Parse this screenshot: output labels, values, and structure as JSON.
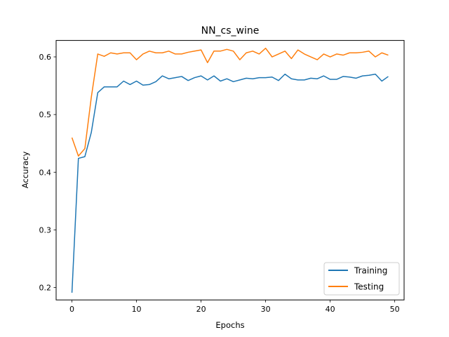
{
  "chart_data": {
    "type": "line",
    "title": "NN_cs_wine",
    "xlabel": "Epochs",
    "ylabel": "Accuracy",
    "xlim": [
      -2.45,
      51.45
    ],
    "ylim": [
      0.1785,
      0.6285
    ],
    "xticks": [
      0,
      10,
      20,
      30,
      40,
      50
    ],
    "yticks": [
      0.2,
      0.3,
      0.4,
      0.5,
      0.6
    ],
    "ytick_labels": [
      "0.2",
      "0.3",
      "0.4",
      "0.5",
      "0.6"
    ],
    "grid": false,
    "legend_position": "lower-right",
    "x": [
      0,
      1,
      2,
      3,
      4,
      5,
      6,
      7,
      8,
      9,
      10,
      11,
      12,
      13,
      14,
      15,
      16,
      17,
      18,
      19,
      20,
      21,
      22,
      23,
      24,
      25,
      26,
      27,
      28,
      29,
      30,
      31,
      32,
      33,
      34,
      35,
      36,
      37,
      38,
      39,
      40,
      41,
      42,
      43,
      44,
      45,
      46,
      47,
      48,
      49
    ],
    "series": [
      {
        "name": "Training",
        "color": "#1f77b4",
        "values": [
          0.191,
          0.424,
          0.427,
          0.469,
          0.538,
          0.548,
          0.548,
          0.548,
          0.558,
          0.552,
          0.558,
          0.551,
          0.552,
          0.557,
          0.567,
          0.562,
          0.564,
          0.566,
          0.559,
          0.564,
          0.567,
          0.56,
          0.567,
          0.558,
          0.562,
          0.557,
          0.56,
          0.563,
          0.562,
          0.564,
          0.564,
          0.565,
          0.559,
          0.57,
          0.562,
          0.56,
          0.56,
          0.563,
          0.562,
          0.567,
          0.561,
          0.561,
          0.566,
          0.565,
          0.563,
          0.567,
          0.568,
          0.57,
          0.558,
          0.566
        ]
      },
      {
        "name": "Testing",
        "color": "#ff7f0e",
        "values": [
          0.46,
          0.428,
          0.441,
          0.53,
          0.605,
          0.601,
          0.607,
          0.605,
          0.607,
          0.607,
          0.595,
          0.605,
          0.61,
          0.607,
          0.607,
          0.61,
          0.605,
          0.605,
          0.608,
          0.61,
          0.612,
          0.59,
          0.61,
          0.61,
          0.613,
          0.61,
          0.595,
          0.607,
          0.61,
          0.605,
          0.615,
          0.6,
          0.605,
          0.61,
          0.597,
          0.612,
          0.605,
          0.6,
          0.595,
          0.605,
          0.6,
          0.605,
          0.603,
          0.607,
          0.607,
          0.608,
          0.61,
          0.6,
          0.607,
          0.603
        ]
      }
    ]
  }
}
